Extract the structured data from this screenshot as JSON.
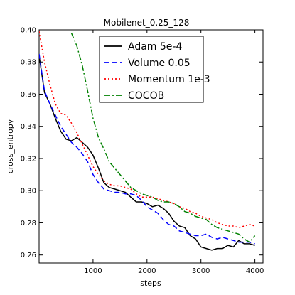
{
  "chart_data": {
    "type": "line",
    "title": "Mobilenet_0.25_128",
    "xlabel": "steps",
    "ylabel": "cross_entropy",
    "xlim": [
      0,
      4150
    ],
    "ylim": [
      0.255,
      0.4
    ],
    "xticks": [
      1000,
      2000,
      3000,
      4000
    ],
    "yticks": [
      0.26,
      0.28,
      0.3,
      0.32,
      0.34,
      0.36,
      0.38,
      0.4
    ],
    "ytick_labels": [
      "0.26",
      "0.28",
      "0.30",
      "0.32",
      "0.34",
      "0.36",
      "0.38",
      "0.40"
    ],
    "grid": false,
    "legend_position": "top-right",
    "series": [
      {
        "name": "Adam 5e-4",
        "color": "#000000",
        "style": "solid",
        "x": [
          0,
          100,
          200,
          300,
          400,
          500,
          600,
          700,
          800,
          900,
          1000,
          1100,
          1200,
          1300,
          1400,
          1500,
          1600,
          1700,
          1800,
          1900,
          2000,
          2100,
          2200,
          2300,
          2400,
          2500,
          2600,
          2700,
          2800,
          2900,
          3000,
          3100,
          3200,
          3300,
          3400,
          3500,
          3600,
          3700,
          3800,
          3900,
          4000
        ],
        "y": [
          0.384,
          0.361,
          0.354,
          0.345,
          0.337,
          0.332,
          0.331,
          0.333,
          0.33,
          0.327,
          0.322,
          0.314,
          0.305,
          0.302,
          0.301,
          0.3,
          0.299,
          0.296,
          0.293,
          0.293,
          0.292,
          0.29,
          0.291,
          0.289,
          0.286,
          0.281,
          0.278,
          0.277,
          0.272,
          0.27,
          0.265,
          0.264,
          0.263,
          0.264,
          0.264,
          0.266,
          0.265,
          0.269,
          0.267,
          0.267,
          0.266
        ]
      },
      {
        "name": "Volume 0.05",
        "color": "#0000ff",
        "style": "dashed",
        "x": [
          0,
          100,
          200,
          300,
          400,
          500,
          600,
          700,
          800,
          900,
          1000,
          1100,
          1200,
          1300,
          1400,
          1500,
          1600,
          1700,
          1800,
          1900,
          2000,
          2100,
          2200,
          2300,
          2400,
          2500,
          2600,
          2700,
          2800,
          2900,
          3000,
          3100,
          3200,
          3300,
          3400,
          3500,
          3600,
          3700,
          3800,
          3900,
          4000
        ],
        "y": [
          0.385,
          0.362,
          0.354,
          0.347,
          0.34,
          0.335,
          0.33,
          0.327,
          0.323,
          0.318,
          0.31,
          0.305,
          0.301,
          0.3,
          0.299,
          0.299,
          0.298,
          0.298,
          0.297,
          0.294,
          0.29,
          0.288,
          0.286,
          0.282,
          0.279,
          0.278,
          0.275,
          0.274,
          0.273,
          0.272,
          0.272,
          0.273,
          0.271,
          0.27,
          0.271,
          0.27,
          0.269,
          0.268,
          0.268,
          0.268,
          0.267
        ]
      },
      {
        "name": "Momentum 1e-3",
        "color": "#ff0000",
        "style": "dotted",
        "x": [
          0,
          100,
          200,
          300,
          400,
          500,
          600,
          700,
          800,
          900,
          1000,
          1100,
          1200,
          1300,
          1400,
          1500,
          1600,
          1700,
          1800,
          1900,
          2000,
          2100,
          2200,
          2300,
          2400,
          2500,
          2600,
          2700,
          2800,
          2900,
          3000,
          3100,
          3200,
          3300,
          3400,
          3500,
          3600,
          3700,
          3800,
          3900,
          4000
        ],
        "y": [
          0.399,
          0.38,
          0.366,
          0.354,
          0.348,
          0.347,
          0.342,
          0.336,
          0.329,
          0.322,
          0.315,
          0.31,
          0.306,
          0.304,
          0.303,
          0.303,
          0.302,
          0.301,
          0.298,
          0.296,
          0.296,
          0.296,
          0.295,
          0.294,
          0.293,
          0.292,
          0.29,
          0.289,
          0.287,
          0.286,
          0.284,
          0.283,
          0.282,
          0.28,
          0.279,
          0.278,
          0.278,
          0.277,
          0.278,
          0.279,
          0.278
        ]
      },
      {
        "name": "COCOB",
        "color": "#008000",
        "style": "dashdot",
        "x": [
          600,
          700,
          800,
          900,
          1000,
          1100,
          1200,
          1300,
          1400,
          1500,
          1600,
          1700,
          1800,
          1900,
          2000,
          2100,
          2200,
          2300,
          2400,
          2500,
          2600,
          2700,
          2800,
          2900,
          3000,
          3100,
          3200,
          3300,
          3400,
          3500,
          3600,
          3700,
          3800,
          3900,
          4000
        ],
        "y": [
          0.398,
          0.39,
          0.378,
          0.362,
          0.345,
          0.333,
          0.326,
          0.318,
          0.314,
          0.31,
          0.306,
          0.302,
          0.3,
          0.298,
          0.297,
          0.296,
          0.294,
          0.293,
          0.293,
          0.292,
          0.29,
          0.287,
          0.286,
          0.284,
          0.283,
          0.282,
          0.279,
          0.277,
          0.276,
          0.275,
          0.274,
          0.273,
          0.27,
          0.268,
          0.272
        ]
      }
    ]
  }
}
